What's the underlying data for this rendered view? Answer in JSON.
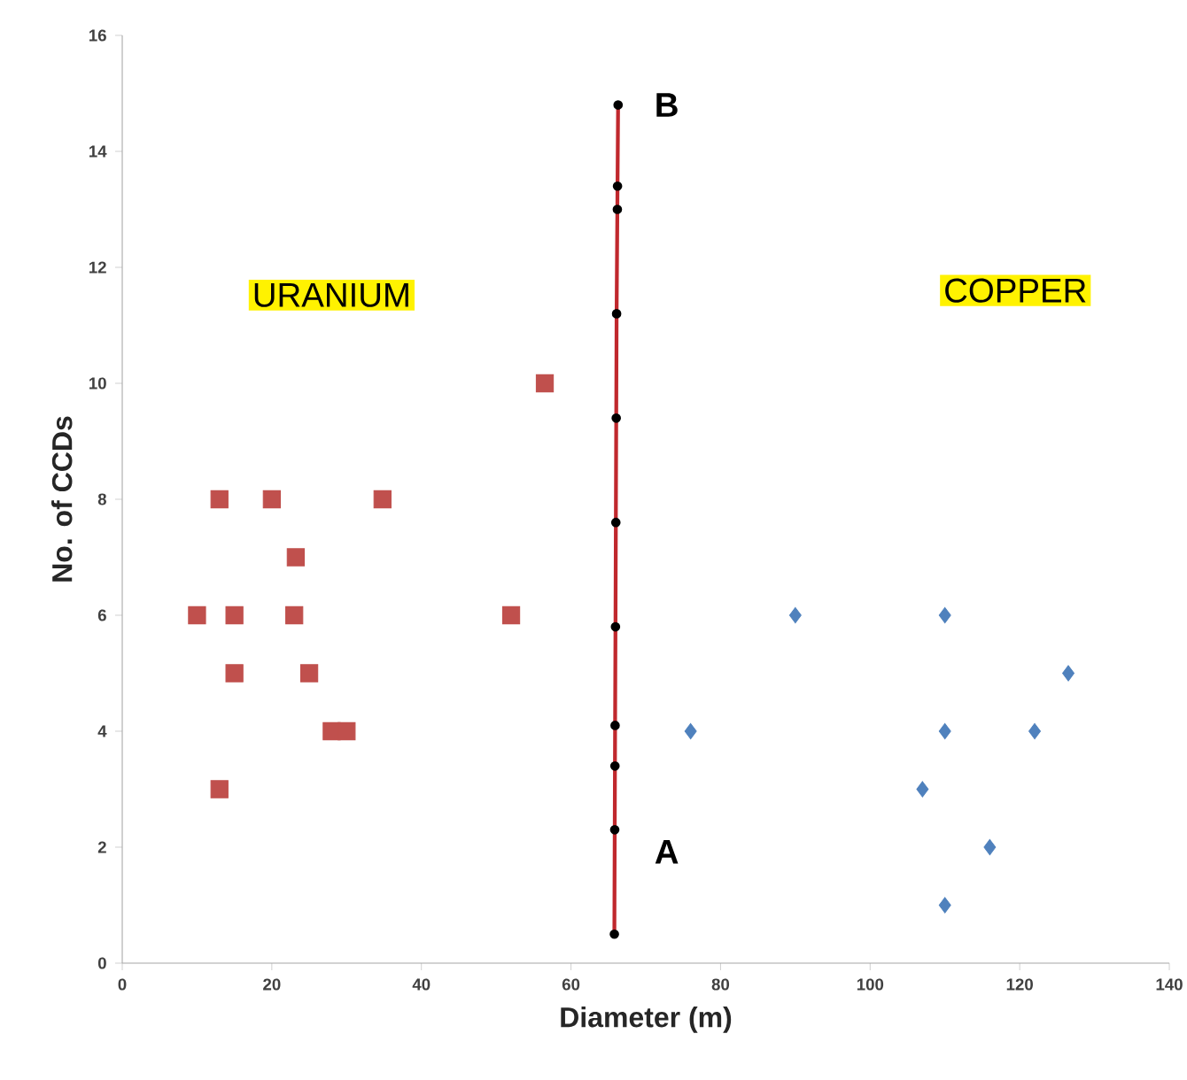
{
  "chart_data": {
    "type": "scatter",
    "xlabel": "Diameter (m)",
    "ylabel": "No. of CCDs",
    "xlim": [
      0,
      140
    ],
    "ylim": [
      0,
      16
    ],
    "xticks": [
      0,
      20,
      40,
      60,
      80,
      100,
      120,
      140
    ],
    "yticks": [
      0,
      2,
      4,
      6,
      8,
      10,
      12,
      14,
      16
    ],
    "grid": false,
    "series": [
      {
        "marker": "square",
        "color": "#c0504d",
        "x": [
          56.5,
          13,
          20,
          34.8,
          23.2,
          10,
          15,
          23,
          52,
          15,
          25,
          28,
          30,
          13
        ],
        "values": [
          10,
          8,
          8,
          8,
          7,
          6,
          6,
          6,
          6,
          5,
          5,
          4,
          4,
          3
        ]
      },
      {
        "marker": "diamond",
        "color": "#4f81bd",
        "x": [
          90,
          110,
          126.5,
          76,
          110,
          122,
          107,
          116,
          110
        ],
        "values": [
          6,
          6,
          5,
          4,
          4,
          4,
          3,
          2,
          1
        ]
      },
      {
        "type": "line",
        "marker": "circle",
        "color": "#c0282d",
        "x": [
          65.8,
          65.85,
          65.88,
          65.9,
          65.95,
          66,
          66.05,
          66.1,
          66.2,
          66.22,
          66.3
        ],
        "values": [
          0.5,
          2.3,
          3.4,
          4.1,
          5.8,
          7.6,
          9.4,
          11.2,
          13,
          13.4,
          14.8
        ]
      }
    ],
    "annotations": [
      "URANIUM",
      "COPPER",
      "A",
      "B"
    ]
  }
}
